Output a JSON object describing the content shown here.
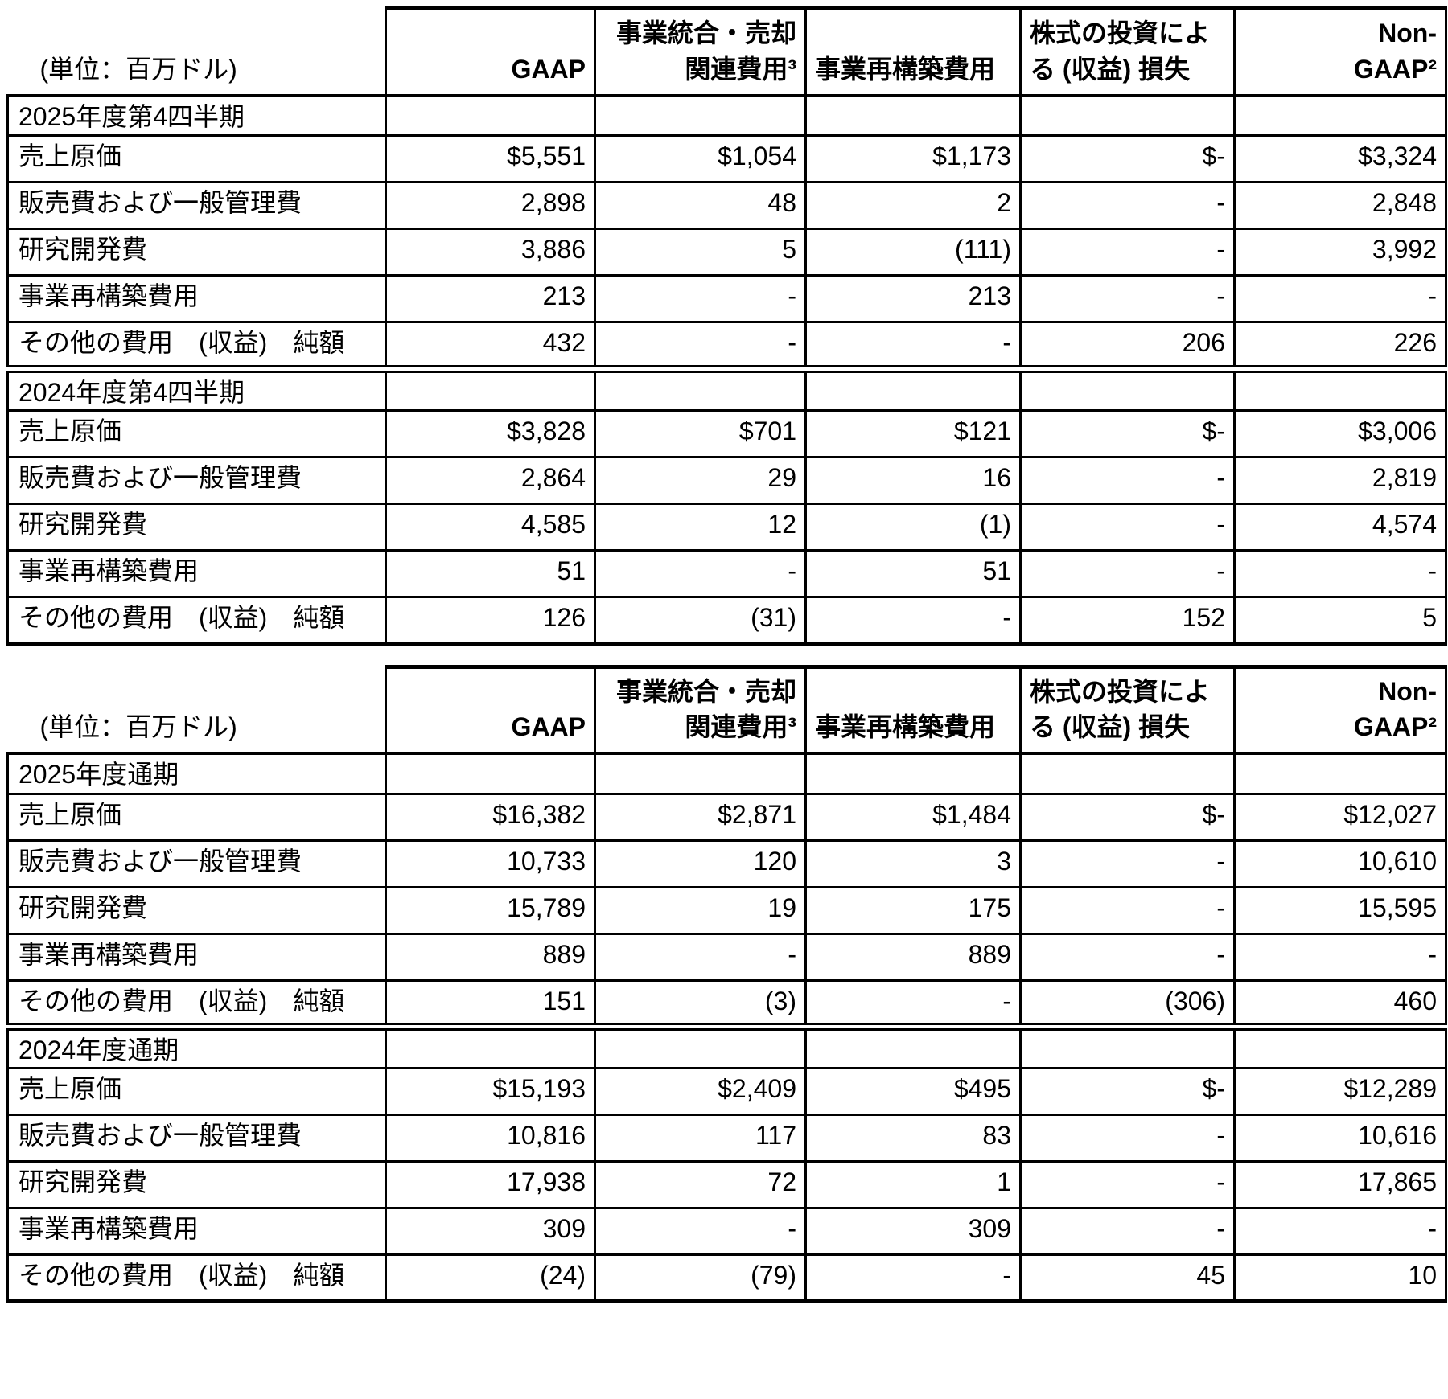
{
  "unit_label": "(単位：百万ドル)",
  "columns": [
    "GAAP",
    "事業統合・売却\n関連費用³",
    "事業再構築費用",
    "株式の投資によ\nる (収益) 損失",
    "Non-\nGAAP²"
  ],
  "tables": [
    {
      "name": "quarterly",
      "sections": [
        {
          "title": "2025年度第4四半期",
          "rows": [
            {
              "label": "売上原価",
              "values": [
                "$5,551",
                "$1,054",
                "$1,173",
                "$-",
                "$3,324"
              ]
            },
            {
              "label": "販売費および一般管理費",
              "values": [
                "2,898",
                "48",
                "2",
                "-",
                "2,848"
              ]
            },
            {
              "label": "研究開発費",
              "values": [
                "3,886",
                "5",
                "(111)",
                "-",
                "3,992"
              ]
            },
            {
              "label": "事業再構築費用",
              "values": [
                "213",
                "-",
                "213",
                "-",
                "-"
              ]
            },
            {
              "label": "その他の費用　(収益)　純額",
              "values": [
                "432",
                "-",
                "-",
                "206",
                "226"
              ]
            }
          ]
        },
        {
          "title": "2024年度第4四半期",
          "rows": [
            {
              "label": "売上原価",
              "values": [
                "$3,828",
                "$701",
                "$121",
                "$-",
                "$3,006"
              ]
            },
            {
              "label": "販売費および一般管理費",
              "values": [
                "2,864",
                "29",
                "16",
                "-",
                "2,819"
              ]
            },
            {
              "label": "研究開発費",
              "values": [
                "4,585",
                "12",
                "(1)",
                "-",
                "4,574"
              ]
            },
            {
              "label": "事業再構築費用",
              "values": [
                "51",
                "-",
                "51",
                "-",
                "-"
              ]
            },
            {
              "label": "その他の費用　(収益)　純額",
              "values": [
                "126",
                "(31)",
                "-",
                "152",
                "5"
              ]
            }
          ]
        }
      ]
    },
    {
      "name": "full-year",
      "sections": [
        {
          "title": "2025年度通期",
          "rows": [
            {
              "label": "売上原価",
              "values": [
                "$16,382",
                "$2,871",
                "$1,484",
                "$-",
                "$12,027"
              ]
            },
            {
              "label": "販売費および一般管理費",
              "values": [
                "10,733",
                "120",
                "3",
                "-",
                "10,610"
              ]
            },
            {
              "label": "研究開発費",
              "values": [
                "15,789",
                "19",
                "175",
                "-",
                "15,595"
              ]
            },
            {
              "label": "事業再構築費用",
              "values": [
                "889",
                "-",
                "889",
                "-",
                "-"
              ]
            },
            {
              "label": "その他の費用　(収益)　純額",
              "values": [
                "151",
                "(3)",
                "-",
                "(306)",
                "460"
              ]
            }
          ]
        },
        {
          "title": "2024年度通期",
          "rows": [
            {
              "label": "売上原価",
              "values": [
                "$15,193",
                "$2,409",
                "$495",
                "$-",
                "$12,289"
              ]
            },
            {
              "label": "販売費および一般管理費",
              "values": [
                "10,816",
                "117",
                "83",
                "-",
                "10,616"
              ]
            },
            {
              "label": "研究開発費",
              "values": [
                "17,938",
                "72",
                "1",
                "-",
                "17,865"
              ]
            },
            {
              "label": "事業再構築費用",
              "values": [
                "309",
                "-",
                "309",
                "-",
                "-"
              ]
            },
            {
              "label": "その他の費用　(収益)　純額",
              "values": [
                "(24)",
                "(79)",
                "-",
                "45",
                "10"
              ]
            }
          ]
        }
      ]
    }
  ]
}
